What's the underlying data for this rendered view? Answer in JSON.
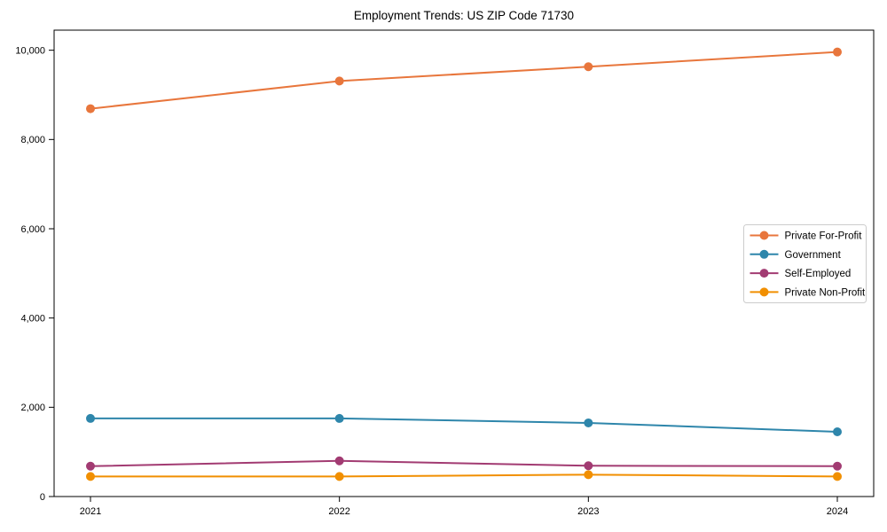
{
  "page": {
    "background_color": "#ffffff",
    "text_color": "#000000"
  },
  "chart_data": {
    "type": "line",
    "title": "Employment Trends: US ZIP Code 71730",
    "categories": [
      "2021",
      "2022",
      "2023",
      "2024"
    ],
    "series": [
      {
        "name": "Private For-Profit",
        "color": "#e8763c",
        "values": [
          8690,
          9310,
          9630,
          9960
        ]
      },
      {
        "name": "Government",
        "color": "#2e86ab",
        "values": [
          1750,
          1750,
          1650,
          1450
        ]
      },
      {
        "name": "Self-Employed",
        "color": "#a23b72",
        "values": [
          680,
          800,
          690,
          680
        ]
      },
      {
        "name": "Private Non-Profit",
        "color": "#f18f01",
        "values": [
          450,
          450,
          490,
          450
        ]
      }
    ],
    "xlabel": "",
    "ylabel": "",
    "ylim": [
      0,
      10450
    ],
    "yticks": [
      0,
      2000,
      4000,
      6000,
      8000,
      10000
    ],
    "ytick_labels": [
      "0",
      "2,000",
      "4,000",
      "6,000",
      "8,000",
      "10,000"
    ],
    "grid": false,
    "legend_position": "right-middle",
    "marker": "circle",
    "axis_color": "#000000",
    "legend_border_color": "#cccccc"
  }
}
